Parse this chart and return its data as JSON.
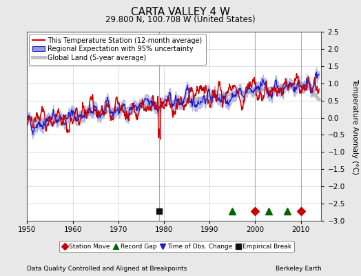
{
  "title": "CARTA VALLEY 4 W",
  "subtitle": "29.800 N, 100.708 W (United States)",
  "ylabel": "Temperature Anomaly (°C)",
  "xlabel_left": "Data Quality Controlled and Aligned at Breakpoints",
  "xlabel_right": "Berkeley Earth",
  "ylim": [
    -3.0,
    2.5
  ],
  "xlim": [
    1950,
    2014.5
  ],
  "yticks": [
    -3,
    -2.5,
    -2,
    -1.5,
    -1,
    -0.5,
    0,
    0.5,
    1,
    1.5,
    2,
    2.5
  ],
  "xticks": [
    1950,
    1960,
    1970,
    1980,
    1990,
    2000,
    2010
  ],
  "background_color": "#e8e8e8",
  "plot_bg_color": "#ffffff",
  "red_color": "#cc0000",
  "blue_color": "#1a1acc",
  "blue_fill_color": "#9999dd",
  "gray_color": "#c0c0c0",
  "legend_labels": [
    "This Temperature Station (12-month average)",
    "Regional Expectation with 95% uncertainty",
    "Global Land (5-year average)"
  ],
  "markers": {
    "station_move": {
      "years": [
        2000,
        2010
      ],
      "color": "#cc0000",
      "marker": "D",
      "label": "Station Move"
    },
    "record_gap": {
      "years": [
        1995,
        2003,
        2007
      ],
      "color": "#006600",
      "marker": "^",
      "label": "Record Gap"
    },
    "time_obs": {
      "years": [],
      "color": "#1a1acc",
      "marker": "v",
      "label": "Time of Obs. Change"
    },
    "empirical_break": {
      "years": [
        1979
      ],
      "color": "#111111",
      "marker": "s",
      "label": "Empirical Break"
    }
  },
  "marker_y": -2.72,
  "vline_years": [
    1979,
    2000,
    2010
  ],
  "seed": 42
}
